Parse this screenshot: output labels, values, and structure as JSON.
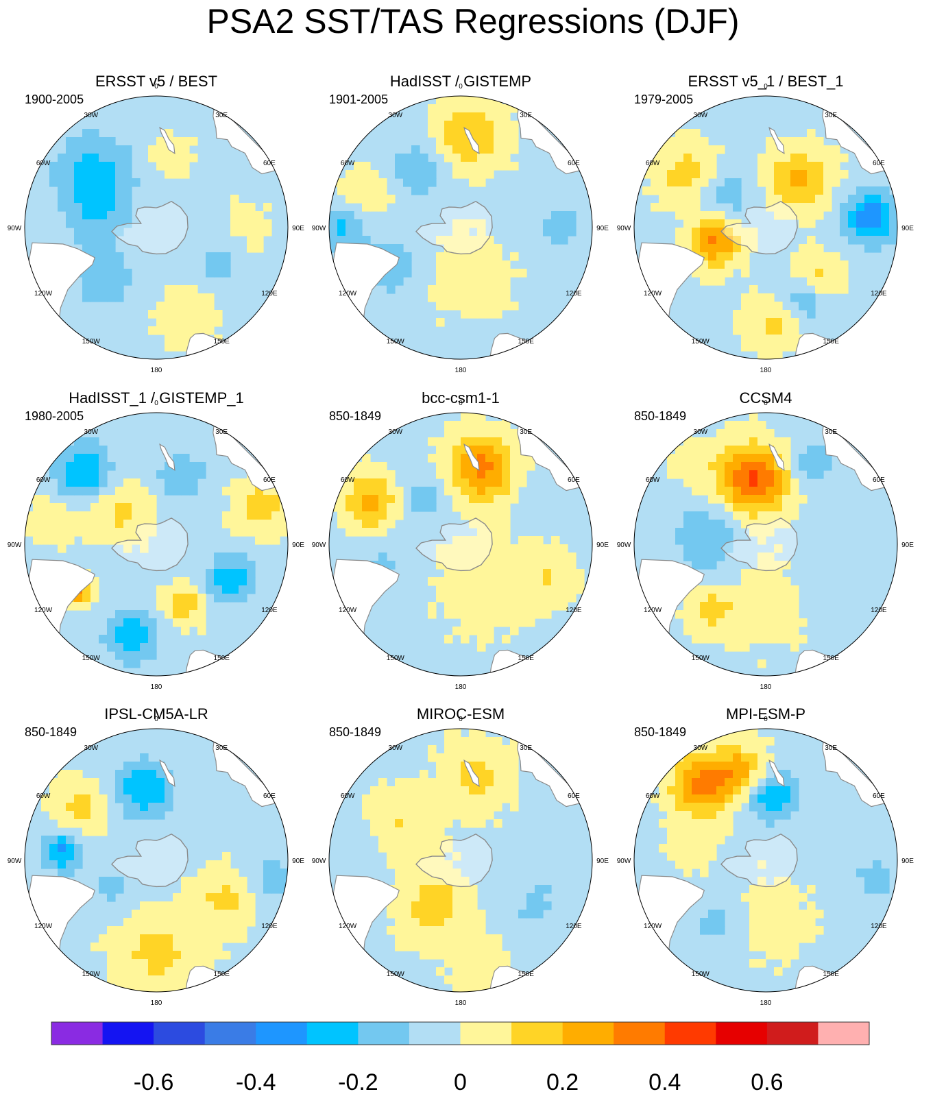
{
  "title": "PSA2 SST/TAS Regressions (DJF)",
  "longitude_labels": [
    "0",
    "30E",
    "60E",
    "90E",
    "120E",
    "150E",
    "180",
    "150W",
    "120W",
    "90W",
    "60W",
    "30W"
  ],
  "colors": {
    "background": "#ffffff",
    "land": "#ffffff",
    "coastline": "#8a8a8a",
    "border": "#000000"
  },
  "chart_data": [
    {
      "type": "heatmap",
      "projection": "south-polar-stereographic",
      "title": "ERSST v5 / BEST",
      "period": "1900-2005",
      "features": [
        {
          "lon": -130,
          "r": 0.62,
          "size": 0.32,
          "value": -0.22
        },
        {
          "lon": -45,
          "r": 0.55,
          "size": 0.25,
          "value": -0.14
        },
        {
          "lon": 60,
          "r": 0.55,
          "size": 0.18,
          "value": -0.12
        },
        {
          "lon": 170,
          "r": 0.55,
          "size": 0.15,
          "value": 0.12
        },
        {
          "lon": 20,
          "r": 0.7,
          "size": 0.25,
          "value": 0.06
        },
        {
          "lon": -100,
          "r": 0.45,
          "size": 0.22,
          "value": -0.12
        },
        {
          "lon": 90,
          "r": 0.7,
          "size": 0.2,
          "value": 0.05
        }
      ]
    },
    {
      "type": "heatmap",
      "projection": "south-polar-stereographic",
      "title": "HadISST / GISTEMP",
      "period": "1901-2005",
      "features": [
        {
          "lon": 175,
          "r": 0.7,
          "size": 0.25,
          "value": 0.22
        },
        {
          "lon": -145,
          "r": 0.55,
          "size": 0.22,
          "value": -0.15
        },
        {
          "lon": -110,
          "r": 0.78,
          "size": 0.18,
          "value": 0.12
        },
        {
          "lon": -60,
          "r": 0.6,
          "size": 0.2,
          "value": -0.18
        },
        {
          "lon": 10,
          "r": 0.35,
          "size": 0.35,
          "value": 0.06
        },
        {
          "lon": 90,
          "r": 0.75,
          "size": 0.2,
          "value": -0.12
        },
        {
          "lon": -90,
          "r": 0.9,
          "size": 0.18,
          "value": -0.2
        }
      ]
    },
    {
      "type": "heatmap",
      "projection": "south-polar-stereographic",
      "title": "ERSST v5_1 / BEST_1",
      "period": "1979-2005",
      "features": [
        {
          "lon": -75,
          "r": 0.4,
          "size": 0.18,
          "value": 0.35
        },
        {
          "lon": 145,
          "r": 0.45,
          "size": 0.22,
          "value": 0.25
        },
        {
          "lon": 95,
          "r": 0.8,
          "size": 0.2,
          "value": -0.35
        },
        {
          "lon": 45,
          "r": 0.55,
          "size": 0.18,
          "value": 0.18
        },
        {
          "lon": 30,
          "r": 0.62,
          "size": 0.18,
          "value": -0.2
        },
        {
          "lon": -125,
          "r": 0.72,
          "size": 0.22,
          "value": 0.18
        },
        {
          "lon": -130,
          "r": 0.4,
          "size": 0.2,
          "value": -0.15
        },
        {
          "lon": 5,
          "r": 0.72,
          "size": 0.2,
          "value": 0.15
        }
      ]
    },
    {
      "type": "heatmap",
      "projection": "south-polar-stereographic",
      "title": "HadISST_1 / GISTEMP_1",
      "period": "1980-2005",
      "features": [
        {
          "lon": -135,
          "r": 0.78,
          "size": 0.22,
          "value": -0.28
        },
        {
          "lon": -15,
          "r": 0.72,
          "size": 0.2,
          "value": -0.25
        },
        {
          "lon": 65,
          "r": 0.62,
          "size": 0.18,
          "value": -0.25
        },
        {
          "lon": -135,
          "r": 0.38,
          "size": 0.22,
          "value": 0.15
        },
        {
          "lon": 110,
          "r": 0.85,
          "size": 0.2,
          "value": 0.18
        },
        {
          "lon": 160,
          "r": 0.55,
          "size": 0.2,
          "value": -0.15
        },
        {
          "lon": -60,
          "r": 0.7,
          "size": 0.1,
          "value": 0.35
        },
        {
          "lon": 25,
          "r": 0.5,
          "size": 0.15,
          "value": 0.2
        },
        {
          "lon": -105,
          "r": 0.8,
          "size": 0.18,
          "value": 0.1
        }
      ]
    },
    {
      "type": "heatmap",
      "projection": "south-polar-stereographic",
      "title": "bcc-csm1-1",
      "period": "850-1849",
      "features": [
        {
          "lon": 165,
          "r": 0.6,
          "size": 0.25,
          "value": 0.35
        },
        {
          "lon": -115,
          "r": 0.75,
          "size": 0.2,
          "value": 0.28
        },
        {
          "lon": -140,
          "r": 0.45,
          "size": 0.22,
          "value": -0.12
        },
        {
          "lon": -75,
          "r": 0.6,
          "size": 0.2,
          "value": -0.1
        },
        {
          "lon": 30,
          "r": 0.35,
          "size": 0.4,
          "value": 0.06
        },
        {
          "lon": 120,
          "r": 0.7,
          "size": 0.2,
          "value": -0.08
        },
        {
          "lon": 70,
          "r": 0.7,
          "size": 0.2,
          "value": 0.12
        }
      ]
    },
    {
      "type": "heatmap",
      "projection": "south-polar-stereographic",
      "title": "CCSM4",
      "period": "850-1849",
      "features": [
        {
          "lon": -170,
          "r": 0.5,
          "size": 0.25,
          "value": 0.45
        },
        {
          "lon": -95,
          "r": 0.45,
          "size": 0.25,
          "value": -0.18
        },
        {
          "lon": -40,
          "r": 0.65,
          "size": 0.18,
          "value": 0.15
        },
        {
          "lon": 150,
          "r": 0.72,
          "size": 0.2,
          "value": -0.15
        },
        {
          "lon": 60,
          "r": 0.6,
          "size": 0.25,
          "value": -0.08
        },
        {
          "lon": 0,
          "r": 0.45,
          "size": 0.35,
          "value": 0.06
        },
        {
          "lon": -140,
          "r": 0.8,
          "size": 0.2,
          "value": 0.06
        }
      ]
    },
    {
      "type": "heatmap",
      "projection": "south-polar-stereographic",
      "title": "IPSL-CM5A-LR",
      "period": "850-1849",
      "features": [
        {
          "lon": -170,
          "r": 0.55,
          "size": 0.22,
          "value": -0.28
        },
        {
          "lon": -95,
          "r": 0.72,
          "size": 0.15,
          "value": -0.3
        },
        {
          "lon": 0,
          "r": 0.7,
          "size": 0.3,
          "value": 0.15
        },
        {
          "lon": 60,
          "r": 0.6,
          "size": 0.22,
          "value": 0.15
        },
        {
          "lon": -125,
          "r": 0.7,
          "size": 0.2,
          "value": 0.15
        },
        {
          "lon": 80,
          "r": 0.9,
          "size": 0.18,
          "value": -0.15
        },
        {
          "lon": -60,
          "r": 0.4,
          "size": 0.2,
          "value": -0.1
        }
      ]
    },
    {
      "type": "heatmap",
      "projection": "south-polar-stereographic",
      "title": "MIROC-ESM",
      "period": "850-1849",
      "features": [
        {
          "lon": -30,
          "r": 0.4,
          "size": 0.25,
          "value": 0.18
        },
        {
          "lon": 170,
          "r": 0.65,
          "size": 0.25,
          "value": 0.15
        },
        {
          "lon": -120,
          "r": 0.55,
          "size": 0.25,
          "value": 0.12
        },
        {
          "lon": 60,
          "r": 0.65,
          "size": 0.25,
          "value": -0.1
        },
        {
          "lon": -100,
          "r": 0.8,
          "size": 0.2,
          "value": -0.08
        },
        {
          "lon": 10,
          "r": 0.8,
          "size": 0.22,
          "value": 0.08
        }
      ]
    },
    {
      "type": "heatmap",
      "projection": "south-polar-stereographic",
      "title": "MPI-ESM-P",
      "period": "850-1849",
      "features": [
        {
          "lon": -140,
          "r": 0.75,
          "size": 0.22,
          "value": 0.38
        },
        {
          "lon": -165,
          "r": 0.7,
          "size": 0.2,
          "value": 0.25
        },
        {
          "lon": 175,
          "r": 0.5,
          "size": 0.2,
          "value": -0.28
        },
        {
          "lon": -35,
          "r": 0.6,
          "size": 0.22,
          "value": -0.12
        },
        {
          "lon": 80,
          "r": 0.85,
          "size": 0.2,
          "value": -0.12
        },
        {
          "lon": 0,
          "r": 0.45,
          "size": 0.35,
          "value": 0.06
        },
        {
          "lon": -100,
          "r": 0.55,
          "size": 0.2,
          "value": 0.06
        }
      ]
    }
  ],
  "colorbar": {
    "levels": [
      -0.7,
      -0.6,
      -0.5,
      -0.4,
      -0.3,
      -0.2,
      -0.1,
      0,
      0.1,
      0.2,
      0.3,
      0.4,
      0.5,
      0.6,
      0.7
    ],
    "colors": [
      "#8a2be2",
      "#1414f2",
      "#2c4be0",
      "#3a7ce6",
      "#1e96ff",
      "#00c4ff",
      "#73c8f0",
      "#b2def4",
      "#fff69a",
      "#ffd426",
      "#ffad00",
      "#ff7b00",
      "#ff3a00",
      "#e60000",
      "#d01c1c",
      "#ffb0b0"
    ],
    "tick_labels": [
      "-0.6",
      "-0.4",
      "-0.2",
      "0",
      "0.2",
      "0.4",
      "0.6"
    ],
    "tick_values": [
      -0.6,
      -0.4,
      -0.2,
      0,
      0.2,
      0.4,
      0.6
    ]
  }
}
